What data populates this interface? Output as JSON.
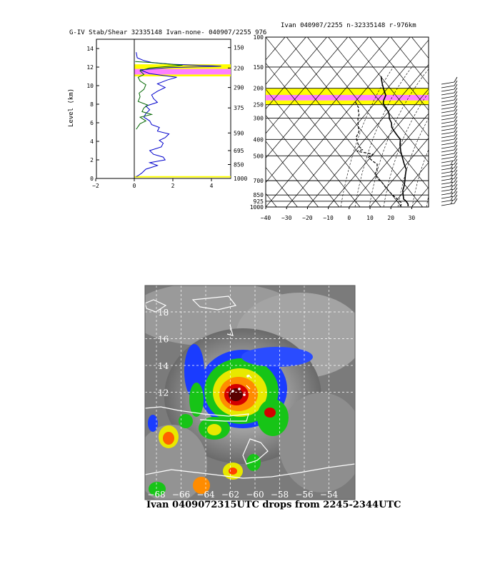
{
  "chart_data": [
    {
      "type": "line",
      "title": "G-IV Stab/Shear 32335148 Ivan-none- 040907/2255 976",
      "ylabel": "Level (km)",
      "xlim": [
        -2,
        5
      ],
      "ylim": [
        0,
        15
      ],
      "x_ticks": [
        "-2",
        "0",
        "2",
        "4"
      ],
      "y_ticks": [
        "0",
        "2",
        "4",
        "6",
        "8",
        "10",
        "12",
        "14"
      ],
      "right_ticks": [
        {
          "km": 0,
          "label": "1000"
        },
        {
          "km": 1.5,
          "label": "850"
        },
        {
          "km": 3.0,
          "label": "695"
        },
        {
          "km": 4.9,
          "label": "590"
        },
        {
          "km": 7.6,
          "label": "375"
        },
        {
          "km": 9.8,
          "label": "290"
        },
        {
          "km": 11.9,
          "label": "220"
        },
        {
          "km": 14.1,
          "label": "150"
        }
      ],
      "highlight_bands": [
        {
          "from": 11.8,
          "to": 12.3,
          "color": "#ffff00"
        },
        {
          "from": 11.2,
          "to": 11.8,
          "color": "#ff80ff"
        },
        {
          "from": 11.0,
          "to": 11.2,
          "color": "#ffff00"
        },
        {
          "from": 0.1,
          "to": 0.25,
          "color": "#ffff00"
        }
      ],
      "series": [
        {
          "color": "#0000cc",
          "points": [
            [
              0.1,
              13.6
            ],
            [
              0.15,
              13.0
            ],
            [
              0.5,
              12.7
            ],
            [
              0.9,
              12.5
            ],
            [
              2.0,
              12.3
            ],
            [
              4.5,
              12.1
            ],
            [
              1.8,
              11.95
            ],
            [
              0.3,
              11.7
            ],
            [
              0.8,
              11.3
            ],
            [
              1.5,
              11.1
            ],
            [
              2.2,
              10.9
            ],
            [
              1.7,
              10.6
            ],
            [
              1.2,
              10.2
            ],
            [
              1.6,
              9.8
            ],
            [
              1.2,
              9.4
            ],
            [
              0.9,
              9.0
            ],
            [
              1.0,
              8.6
            ],
            [
              1.2,
              8.2
            ],
            [
              0.6,
              7.8
            ],
            [
              0.8,
              7.4
            ],
            [
              0.6,
              7.0
            ],
            [
              0.5,
              6.6
            ],
            [
              0.8,
              6.2
            ],
            [
              0.9,
              5.8
            ],
            [
              1.3,
              5.5
            ],
            [
              1.2,
              5.1
            ],
            [
              1.8,
              4.8
            ],
            [
              1.6,
              4.4
            ],
            [
              1.3,
              4.1
            ],
            [
              1.5,
              3.8
            ],
            [
              1.4,
              3.4
            ],
            [
              0.8,
              3.0
            ],
            [
              1.0,
              2.6
            ],
            [
              1.5,
              2.3
            ],
            [
              1.6,
              2.0
            ],
            [
              0.8,
              1.7
            ],
            [
              1.2,
              1.4
            ],
            [
              0.6,
              1.0
            ],
            [
              0.4,
              0.6
            ],
            [
              0.2,
              0.3
            ],
            [
              0.1,
              0.2
            ]
          ]
        },
        {
          "color": "#006600",
          "points": [
            [
              0.05,
              12.6
            ],
            [
              0.8,
              12.5
            ],
            [
              2.5,
              12.2
            ],
            [
              0.8,
              11.9
            ],
            [
              0.3,
              11.6
            ],
            [
              0.5,
              11.2
            ],
            [
              0.2,
              10.9
            ],
            [
              0.3,
              10.5
            ],
            [
              0.6,
              10.1
            ],
            [
              0.5,
              9.6
            ],
            [
              0.25,
              9.2
            ],
            [
              0.3,
              8.8
            ],
            [
              0.2,
              8.3
            ],
            [
              0.7,
              7.9
            ],
            [
              0.5,
              7.6
            ],
            [
              0.4,
              7.2
            ],
            [
              0.9,
              6.9
            ],
            [
              0.3,
              6.6
            ],
            [
              0.6,
              6.2
            ],
            [
              0.3,
              5.9
            ],
            [
              0.2,
              5.6
            ],
            [
              0.1,
              5.3
            ]
          ]
        }
      ]
    },
    {
      "type": "line",
      "title": "Ivan 040907/2255 n-32335148 r-976km",
      "xlim": [
        -40,
        40
      ],
      "ylim": [
        1000,
        100
      ],
      "x_ticks": [
        "-40",
        "-30",
        "-20",
        "-10",
        "0",
        "10",
        "20",
        "30"
      ],
      "pressure_levels": [
        "100",
        "150",
        "200",
        "250",
        "300",
        "400",
        "500",
        "700",
        "850",
        "925",
        "1000"
      ],
      "highlight_bands": [
        {
          "from": 200,
          "to": 219,
          "color": "#ffff00"
        },
        {
          "from": 219,
          "to": 236,
          "color": "#ff80ff"
        },
        {
          "from": 236,
          "to": 250,
          "color": "#ffff00"
        }
      ],
      "series": [
        {
          "name": "temperature",
          "style": "solid",
          "points": [
            [
              -38,
              170
            ],
            [
              -36,
              180
            ],
            [
              -34,
              190
            ],
            [
              -32,
              200
            ],
            [
              -30,
              210
            ],
            [
              -28,
              220
            ],
            [
              -27,
              235
            ],
            [
              -26,
              245
            ],
            [
              -24,
              255
            ],
            [
              -22,
              265
            ],
            [
              -20,
              275
            ],
            [
              -18,
              290
            ],
            [
              -17,
              300
            ],
            [
              -14,
              320
            ],
            [
              -12,
              340
            ],
            [
              -9,
              360
            ],
            [
              -6,
              380
            ],
            [
              -3,
              400
            ],
            [
              -1,
              430
            ],
            [
              2,
              470
            ],
            [
              6,
              520
            ],
            [
              9,
              560
            ],
            [
              12,
              600
            ],
            [
              14,
              650
            ],
            [
              16,
              700
            ],
            [
              18,
              760
            ],
            [
              19,
              800
            ],
            [
              21,
              850
            ],
            [
              23,
              900
            ],
            [
              25,
              925
            ],
            [
              27,
              960
            ],
            [
              28,
              990
            ]
          ]
        },
        {
          "name": "dewpoint",
          "style": "dashed",
          "points": [
            [
              -40,
              240
            ],
            [
              -38,
              250
            ],
            [
              -36,
              260
            ],
            [
              -35,
              270
            ],
            [
              -33,
              285
            ],
            [
              -32,
              300
            ],
            [
              -30,
              320
            ],
            [
              -28,
              340
            ],
            [
              -26,
              360
            ],
            [
              -25,
              390
            ],
            [
              -22,
              420
            ],
            [
              -20,
              440
            ],
            [
              -17,
              460
            ],
            [
              -19,
              470
            ],
            [
              -14,
              480
            ],
            [
              -10,
              490
            ],
            [
              -11,
              510
            ],
            [
              -7,
              540
            ],
            [
              -4,
              560
            ],
            [
              -2,
              600
            ],
            [
              -1,
              640
            ],
            [
              2,
              680
            ],
            [
              4,
              700
            ],
            [
              6,
              720
            ],
            [
              9,
              760
            ],
            [
              12,
              800
            ],
            [
              16,
              850
            ],
            [
              20,
              900
            ],
            [
              23,
              940
            ],
            [
              24,
              970
            ],
            [
              24,
              990
            ]
          ]
        }
      ]
    }
  ],
  "satellite": {
    "caption": "Ivan 0409072315UTC drops from 2245-2344UTC",
    "lat_labels": [
      "18",
      "16",
      "14",
      "12"
    ],
    "lon_labels": [
      "-68",
      "-66",
      "-64",
      "-62",
      "-60",
      "-58",
      "-56",
      "-54"
    ]
  }
}
